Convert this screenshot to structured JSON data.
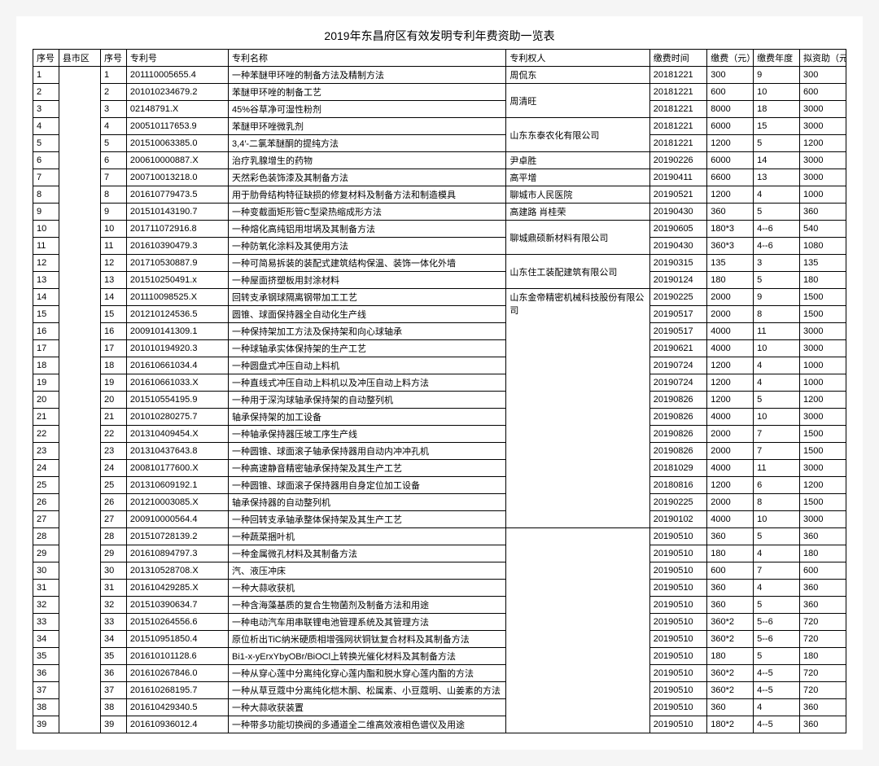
{
  "title": "2019年东昌府区有效发明专利年费资助一览表",
  "headers": {
    "seq": "序号",
    "county": "县市区",
    "seq2": "序号",
    "patentNo": "专利号",
    "patentName": "专利名称",
    "owner": "专利权人",
    "payDate": "缴费时间",
    "fee": "缴费（元）",
    "year": "缴费年度",
    "fund": "拟资助（元）"
  },
  "rows": [
    {
      "seq": "1",
      "seq2": "1",
      "patentNo": "201110005655.4",
      "name": "一种苯醚甲环唑的制备方法及精制方法",
      "date": "20181221",
      "fee": "300",
      "year": "9",
      "fund": "300"
    },
    {
      "seq": "2",
      "seq2": "2",
      "patentNo": "201010234679.2",
      "name": "苯醚甲环唑的制备工艺",
      "date": "20181221",
      "fee": "600",
      "year": "10",
      "fund": "600"
    },
    {
      "seq": "3",
      "seq2": "3",
      "patentNo": "02148791.X",
      "name": "45%谷草净可湿性粉剂",
      "date": "20181221",
      "fee": "8000",
      "year": "18",
      "fund": "3000"
    },
    {
      "seq": "4",
      "seq2": "4",
      "patentNo": "200510117653.9",
      "name": "苯醚甲环唑微乳剂",
      "date": "20181221",
      "fee": "6000",
      "year": "15",
      "fund": "3000"
    },
    {
      "seq": "5",
      "seq2": "5",
      "patentNo": "201510063385.0",
      "name": "3,4′-二氯苯醚酮的提纯方法",
      "date": "20181221",
      "fee": "1200",
      "year": "5",
      "fund": "1200"
    },
    {
      "seq": "6",
      "seq2": "6",
      "patentNo": "200610000887.X",
      "name": "治疗乳腺增生的药物",
      "date": "20190226",
      "fee": "6000",
      "year": "14",
      "fund": "3000"
    },
    {
      "seq": "7",
      "seq2": "7",
      "patentNo": "200710013218.0",
      "name": "天然彩色装饰漆及其制备方法",
      "date": "20190411",
      "fee": "6600",
      "year": "13",
      "fund": "3000"
    },
    {
      "seq": "8",
      "seq2": "8",
      "patentNo": "201610779473.5",
      "name": "用于肋骨结构特征缺损的修复材料及制备方法和制造模具",
      "date": "20190521",
      "fee": "1200",
      "year": "4",
      "fund": "1000"
    },
    {
      "seq": "9",
      "seq2": "9",
      "patentNo": "201510143190.7",
      "name": "一种变截面矩形管C型梁热缩成形方法",
      "date": "20190430",
      "fee": "360",
      "year": "5",
      "fund": "360"
    },
    {
      "seq": "10",
      "seq2": "10",
      "patentNo": "201711072916.8",
      "name": "一种熔化高纯铝用坩埚及其制备方法",
      "date": "20190605",
      "fee": "180*3",
      "year": "4--6",
      "fund": "540"
    },
    {
      "seq": "11",
      "seq2": "11",
      "patentNo": "201610390479.3",
      "name": "一种防氧化涂料及其使用方法",
      "date": "20190430",
      "fee": "360*3",
      "year": "4--6",
      "fund": "1080"
    },
    {
      "seq": "12",
      "seq2": "12",
      "patentNo": "201710530887.9",
      "name": "一种可简易拆装的装配式建筑结构保温、装饰一体化外墙",
      "date": "20190315",
      "fee": "135",
      "year": "3",
      "fund": "135"
    },
    {
      "seq": "13",
      "seq2": "13",
      "patentNo": "201510250491.x",
      "name": "一种屋面挤塑板用封涂材料",
      "date": "20190124",
      "fee": "180",
      "year": "5",
      "fund": "180"
    },
    {
      "seq": "14",
      "seq2": "14",
      "patentNo": "201110098525.X",
      "name": "回转支承钢球隔离钢带加工工艺",
      "date": "20190225",
      "fee": "2000",
      "year": "9",
      "fund": "1500"
    },
    {
      "seq": "15",
      "seq2": "15",
      "patentNo": "201210124536.5",
      "name": "圆锥、球面保持器全自动化生产线",
      "date": "20190517",
      "fee": "2000",
      "year": "8",
      "fund": "1500"
    },
    {
      "seq": "16",
      "seq2": "16",
      "patentNo": "200910141309.1",
      "name": "一种保持架加工方法及保持架和向心球轴承",
      "date": "20190517",
      "fee": "4000",
      "year": "11",
      "fund": "3000"
    },
    {
      "seq": "17",
      "seq2": "17",
      "patentNo": "201010194920.3",
      "name": "一种球轴承实体保持架的生产工艺",
      "date": "20190621",
      "fee": "4000",
      "year": "10",
      "fund": "3000"
    },
    {
      "seq": "18",
      "seq2": "18",
      "patentNo": "201610661034.4",
      "name": "一种圆盘式冲压自动上料机",
      "date": "20190724",
      "fee": "1200",
      "year": "4",
      "fund": "1000"
    },
    {
      "seq": "19",
      "seq2": "19",
      "patentNo": "201610661033.X",
      "name": "一种直线式冲压自动上料机以及冲压自动上料方法",
      "date": "20190724",
      "fee": "1200",
      "year": "4",
      "fund": "1000"
    },
    {
      "seq": "20",
      "seq2": "20",
      "patentNo": "201510554195.9",
      "name": "一种用于深沟球轴承保持架的自动整列机",
      "date": "20190826",
      "fee": "1200",
      "year": "5",
      "fund": "1200"
    },
    {
      "seq": "21",
      "seq2": "21",
      "patentNo": "201010280275.7",
      "name": "轴承保持架的加工设备",
      "date": "20190826",
      "fee": "4000",
      "year": "10",
      "fund": "3000"
    },
    {
      "seq": "22",
      "seq2": "22",
      "patentNo": "201310409454.X",
      "name": "一种轴承保持器压坡工序生产线",
      "date": "20190826",
      "fee": "2000",
      "year": "7",
      "fund": "1500"
    },
    {
      "seq": "23",
      "seq2": "23",
      "patentNo": "201310437643.8",
      "name": "一种圆锥、球面滚子轴承保持器用自动内冲冲孔机",
      "date": "20190826",
      "fee": "2000",
      "year": "7",
      "fund": "1500"
    },
    {
      "seq": "24",
      "seq2": "24",
      "patentNo": "200810177600.X",
      "name": "一种高速静音精密轴承保持架及其生产工艺",
      "date": "20181029",
      "fee": "4000",
      "year": "11",
      "fund": "3000"
    },
    {
      "seq": "25",
      "seq2": "25",
      "patentNo": "201310609192.1",
      "name": "一种圆锥、球面滚子保持器用自身定位加工设备",
      "date": "20180816",
      "fee": "1200",
      "year": "6",
      "fund": "1200"
    },
    {
      "seq": "26",
      "seq2": "26",
      "patentNo": "201210003085.X",
      "name": "轴承保持器的自动整列机",
      "date": "20190225",
      "fee": "2000",
      "year": "8",
      "fund": "1500"
    },
    {
      "seq": "27",
      "seq2": "27",
      "patentNo": "200910000564.4",
      "name": "一种回转支承轴承整体保持架及其生产工艺",
      "date": "20190102",
      "fee": "4000",
      "year": "10",
      "fund": "3000"
    },
    {
      "seq": "28",
      "seq2": "28",
      "patentNo": "201510728139.2",
      "name": "一种蔬菜捆叶机",
      "date": "20190510",
      "fee": "360",
      "year": "5",
      "fund": "360"
    },
    {
      "seq": "29",
      "seq2": "29",
      "patentNo": "201610894797.3",
      "name": "一种金属微孔材料及其制备方法",
      "date": "20190510",
      "fee": "180",
      "year": "4",
      "fund": "180"
    },
    {
      "seq": "30",
      "seq2": "30",
      "patentNo": "201310528708.X",
      "name": "汽、液压冲床",
      "date": "20190510",
      "fee": "600",
      "year": "7",
      "fund": "600"
    },
    {
      "seq": "31",
      "seq2": "31",
      "patentNo": "201610429285.X",
      "name": "一种大蒜收获机",
      "date": "20190510",
      "fee": "360",
      "year": "4",
      "fund": "360"
    },
    {
      "seq": "32",
      "seq2": "32",
      "patentNo": "201510390634.7",
      "name": "一种含海藻基质的复合生物菌剂及制备方法和用途",
      "date": "20190510",
      "fee": "360",
      "year": "5",
      "fund": "360"
    },
    {
      "seq": "33",
      "seq2": "33",
      "patentNo": "201510264556.6",
      "name": "一种电动汽车用串联锂电池管理系统及其管理方法",
      "date": "20190510",
      "fee": "360*2",
      "year": "5--6",
      "fund": "720"
    },
    {
      "seq": "34",
      "seq2": "34",
      "patentNo": "201510951850.4",
      "name": "原位析出TiC纳米硬质相增强网状铜钛复合材料及其制备方法",
      "date": "20190510",
      "fee": "360*2",
      "year": "5--6",
      "fund": "720"
    },
    {
      "seq": "35",
      "seq2": "35",
      "patentNo": "201610101128.6",
      "name": "Bi1-x-yErxYbyOBr/BiOCl上转换光催化材料及其制备方法",
      "date": "20190510",
      "fee": "180",
      "year": "5",
      "fund": "180"
    },
    {
      "seq": "36",
      "seq2": "36",
      "patentNo": "201610267846.0",
      "name": "一种从穿心莲中分离纯化穿心莲内酯和脱水穿心莲内酯的方法",
      "date": "20190510",
      "fee": "360*2",
      "year": "4--5",
      "fund": "720"
    },
    {
      "seq": "37",
      "seq2": "37",
      "patentNo": "201610268195.7",
      "name": "一种从草豆蔻中分离纯化桤木酮、松属素、小豆蔻明、山姜素的方法",
      "date": "20190510",
      "fee": "360*2",
      "year": "4--5",
      "fund": "720"
    },
    {
      "seq": "38",
      "seq2": "38",
      "patentNo": "201610429340.5",
      "name": "一种大蒜收获装置",
      "date": "20190510",
      "fee": "360",
      "year": "4",
      "fund": "360"
    },
    {
      "seq": "39",
      "seq2": "39",
      "patentNo": "201610936012.4",
      "name": "一种带多功能切换阀的多通道全二维高效液相色谱仪及用途",
      "date": "20190510",
      "fee": "180*2",
      "year": "4--5",
      "fund": "360"
    }
  ],
  "owners": [
    {
      "start": 0,
      "span": 1,
      "name": "周侃东"
    },
    {
      "start": 1,
      "span": 2,
      "name": "周清旺"
    },
    {
      "start": 3,
      "span": 2,
      "name": "山东东泰农化有限公司"
    },
    {
      "start": 5,
      "span": 1,
      "name": "尹卓胜"
    },
    {
      "start": 6,
      "span": 1,
      "name": "高平增"
    },
    {
      "start": 7,
      "span": 1,
      "name": "聊城市人民医院"
    },
    {
      "start": 8,
      "span": 1,
      "name": "高建路 肖桂荣"
    },
    {
      "start": 9,
      "span": 2,
      "name": "聊城鼎硕新材料有限公司"
    },
    {
      "start": 11,
      "span": 2,
      "name": "山东住工装配建筑有限公司"
    },
    {
      "start": 13,
      "span": 14,
      "name": "山东金帝精密机械科技股份有限公司"
    },
    {
      "start": 27,
      "span": 12,
      "name": ""
    }
  ],
  "countySpan": 39
}
